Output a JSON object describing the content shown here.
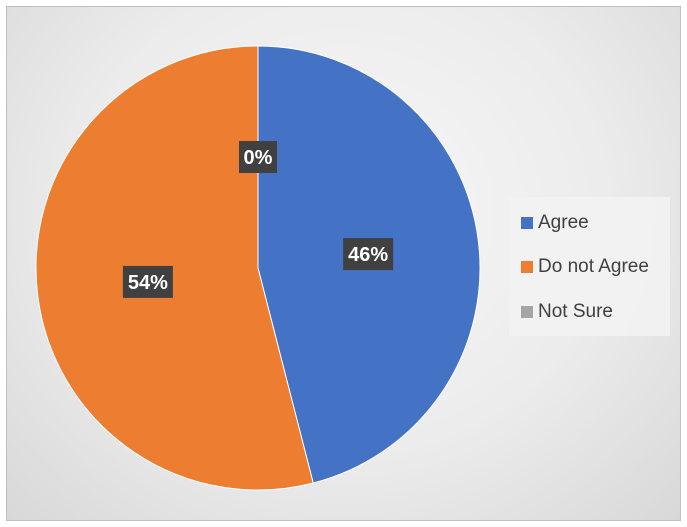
{
  "chart_data": {
    "type": "pie",
    "categories": [
      "Agree",
      "Do not Agree",
      "Not Sure"
    ],
    "values": [
      46,
      54,
      0
    ],
    "labels": [
      "46%",
      "54%",
      "0%"
    ],
    "colors": [
      "#4472c4",
      "#ed7d31",
      "#a5a5a5"
    ],
    "legend_position": "right",
    "start_angle": "12 o'clock, clockwise"
  }
}
